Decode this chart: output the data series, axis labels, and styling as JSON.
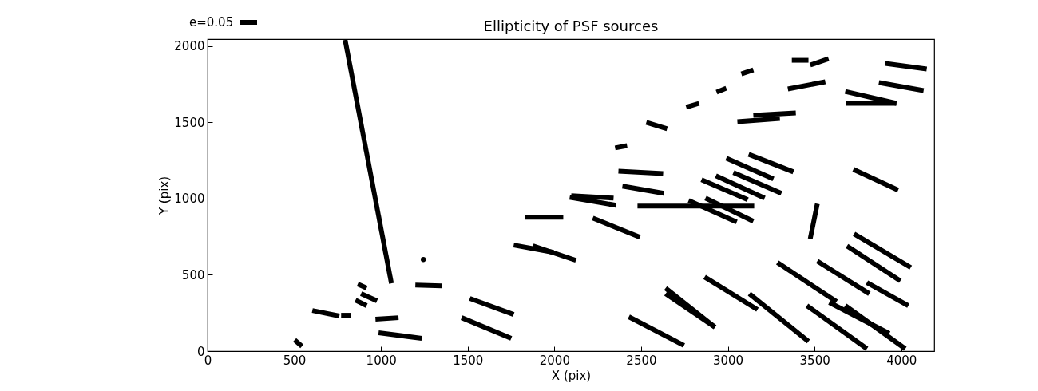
{
  "chart_data": {
    "type": "line",
    "title": "Ellipticity of PSF sources",
    "xlabel": "X (pix)",
    "ylabel": "Y (pix)",
    "annotations": [
      "e=0.05"
    ],
    "xlim": [
      0,
      4190
    ],
    "ylim": [
      0,
      2045
    ],
    "xticks": [
      0,
      500,
      1000,
      1500,
      2000,
      2500,
      3000,
      3500,
      4000
    ],
    "yticks": [
      0,
      500,
      1000,
      1500,
      2000
    ],
    "grid": false,
    "legend": false,
    "marker": "none",
    "line_style": "solid",
    "series": [
      {
        "color": "#000000",
        "x": [
          502,
          544
        ],
        "values": [
          73,
          31
        ]
      },
      {
        "color": "#000000",
        "x": [
          604,
          760
        ],
        "values": [
          266,
          230
        ]
      },
      {
        "color": "#000000",
        "x": [
          770,
          828
        ],
        "values": [
          235,
          235
        ]
      },
      {
        "color": "#000000",
        "x": [
          866,
          917
        ],
        "values": [
          439,
          413
        ]
      },
      {
        "color": "#000000",
        "x": [
          885,
          977
        ],
        "values": [
          376,
          329
        ]
      },
      {
        "color": "#000000",
        "x": [
          853,
          917
        ],
        "values": [
          334,
          298
        ]
      },
      {
        "color": "#000000",
        "x": [
          793,
          1060
        ],
        "values": [
          2040,
          444
        ]
      },
      {
        "color": "#000000",
        "x": [
          968,
          1101
        ],
        "values": [
          209,
          219
        ]
      },
      {
        "color": "#000000",
        "x": [
          986,
          1235
        ],
        "values": [
          120,
          84
        ]
      },
      {
        "type": "scatter",
        "marker": "circle",
        "color": "#000000",
        "x": [
          1244
        ],
        "values": [
          600
        ]
      },
      {
        "color": "#000000",
        "x": [
          1198,
          1350
        ],
        "values": [
          433,
          428
        ]
      },
      {
        "color": "#000000",
        "x": [
          1512,
          1765
        ],
        "values": [
          345,
          240
        ]
      },
      {
        "color": "#000000",
        "x": [
          1465,
          1751
        ],
        "values": [
          219,
          84
        ]
      },
      {
        "color": "#000000",
        "x": [
          1765,
          1995
        ],
        "values": [
          695,
          647
        ]
      },
      {
        "color": "#000000",
        "x": [
          1876,
          2124
        ],
        "values": [
          690,
          595
        ]
      },
      {
        "color": "#000000",
        "x": [
          1829,
          2051
        ],
        "values": [
          877,
          877
        ]
      },
      {
        "color": "#000000",
        "x": [
          2088,
          2355
        ],
        "values": [
          1008,
          956
        ]
      },
      {
        "color": "#000000",
        "x": [
          2097,
          2341
        ],
        "values": [
          1018,
          1003
        ]
      },
      {
        "color": "#000000",
        "x": [
          2221,
          2493
        ],
        "values": [
          872,
          747
        ]
      },
      {
        "color": "#000000",
        "x": [
          2392,
          2631
        ],
        "values": [
          1081,
          1034
        ]
      },
      {
        "color": "#000000",
        "x": [
          2369,
          2627
        ],
        "values": [
          1180,
          1164
        ]
      },
      {
        "color": "#000000",
        "x": [
          2350,
          2419
        ],
        "values": [
          1332,
          1347
        ]
      },
      {
        "color": "#000000",
        "x": [
          2530,
          2650
        ],
        "values": [
          1499,
          1457
        ]
      },
      {
        "color": "#000000",
        "x": [
          2760,
          2834
        ],
        "values": [
          1598,
          1624
        ]
      },
      {
        "color": "#000000",
        "x": [
          2479,
          3152
        ],
        "values": [
          950,
          950
        ]
      },
      {
        "color": "#000000",
        "x": [
          2429,
          2747
        ],
        "values": [
          225,
          37
        ]
      },
      {
        "color": "#000000",
        "x": [
          2641,
          2926
        ],
        "values": [
          413,
          157
        ]
      },
      {
        "color": "#000000",
        "x": [
          2641,
          2926
        ],
        "values": [
          376,
          157
        ]
      },
      {
        "color": "#000000",
        "x": [
          2866,
          3171
        ],
        "values": [
          486,
          272
        ]
      },
      {
        "color": "#000000",
        "x": [
          3124,
          3465
        ],
        "values": [
          376,
          63
        ]
      },
      {
        "color": "#000000",
        "x": [
          3286,
          3627
        ],
        "values": [
          580,
          324
        ]
      },
      {
        "color": "#000000",
        "x": [
          3456,
          3802
        ],
        "values": [
          298,
          16
        ]
      },
      {
        "color": "#000000",
        "x": [
          3516,
          3816
        ],
        "values": [
          590,
          376
        ]
      },
      {
        "color": "#000000",
        "x": [
          3585,
          3931
        ],
        "values": [
          319,
          115
        ]
      },
      {
        "color": "#000000",
        "x": [
          3677,
          4023
        ],
        "values": [
          298,
          16
        ]
      },
      {
        "color": "#000000",
        "x": [
          3687,
          3995
        ],
        "values": [
          689,
          460
        ]
      },
      {
        "color": "#000000",
        "x": [
          3728,
          4055
        ],
        "values": [
          768,
          548
        ]
      },
      {
        "color": "#000000",
        "x": [
          3802,
          4041
        ],
        "values": [
          449,
          298
        ]
      },
      {
        "color": "#000000",
        "x": [
          3475,
          3516
        ],
        "values": [
          736,
          966
        ]
      },
      {
        "color": "#000000",
        "x": [
          3724,
          3982
        ],
        "values": [
          1191,
          1055
        ]
      },
      {
        "color": "#000000",
        "x": [
          2774,
          3051
        ],
        "values": [
          987,
          846
        ]
      },
      {
        "color": "#000000",
        "x": [
          2871,
          3147
        ],
        "values": [
          1003,
          851
        ]
      },
      {
        "color": "#000000",
        "x": [
          2848,
          3115
        ],
        "values": [
          1123,
          992
        ]
      },
      {
        "color": "#000000",
        "x": [
          2931,
          3212
        ],
        "values": [
          1149,
          1003
        ]
      },
      {
        "color": "#000000",
        "x": [
          3032,
          3309
        ],
        "values": [
          1170,
          1034
        ]
      },
      {
        "color": "#000000",
        "x": [
          2991,
          3263
        ],
        "values": [
          1264,
          1128
        ]
      },
      {
        "color": "#000000",
        "x": [
          3120,
          3378
        ],
        "values": [
          1290,
          1175
        ]
      },
      {
        "color": "#000000",
        "x": [
          3055,
          3300
        ],
        "values": [
          1504,
          1525
        ]
      },
      {
        "color": "#000000",
        "x": [
          3147,
          3392
        ],
        "values": [
          1546,
          1561
        ]
      },
      {
        "color": "#000000",
        "x": [
          2935,
          2991
        ],
        "values": [
          1697,
          1723
        ]
      },
      {
        "color": "#000000",
        "x": [
          3078,
          3147
        ],
        "values": [
          1817,
          1843
        ]
      },
      {
        "color": "#000000",
        "x": [
          3369,
          3465
        ],
        "values": [
          1906,
          1906
        ]
      },
      {
        "color": "#000000",
        "x": [
          3475,
          3581
        ],
        "values": [
          1875,
          1916
        ]
      },
      {
        "color": "#000000",
        "x": [
          3346,
          3562
        ],
        "values": [
          1718,
          1765
        ]
      },
      {
        "color": "#000000",
        "x": [
          3677,
          3972
        ],
        "values": [
          1702,
          1624
        ]
      },
      {
        "color": "#000000",
        "x": [
          3682,
          3972
        ],
        "values": [
          1624,
          1624
        ]
      },
      {
        "color": "#000000",
        "x": [
          3871,
          4129
        ],
        "values": [
          1760,
          1708
        ]
      },
      {
        "color": "#000000",
        "x": [
          3908,
          4147
        ],
        "values": [
          1885,
          1849
        ]
      }
    ]
  }
}
